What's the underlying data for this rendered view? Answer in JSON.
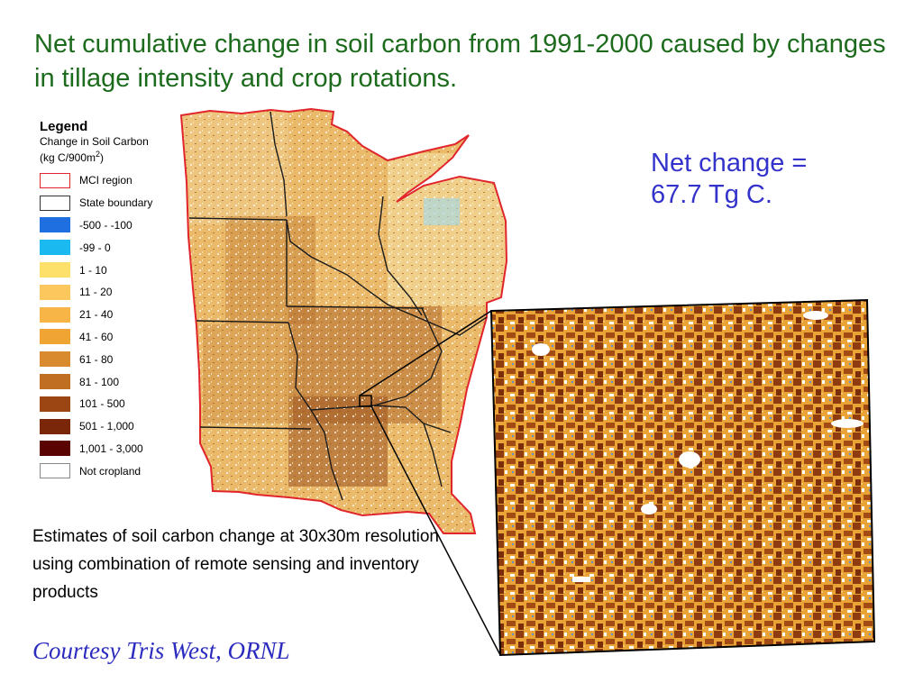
{
  "title": "Net cumulative change in soil carbon from 1991-2000 caused by changes in tillage intensity and crop rotations.",
  "legend": {
    "title": "Legend",
    "subtitle": "Change in Soil Carbon",
    "units_prefix": "(kg C/900m",
    "units_sup": "2",
    "units_suffix": ")",
    "items": [
      {
        "label": "MCI region",
        "fill": "#ffffff",
        "stroke": "#e0252b"
      },
      {
        "label": "State boundary",
        "fill": "#ffffff",
        "stroke": "#333333"
      },
      {
        "label": "-500 - -100",
        "fill": "#1f6fe0",
        "stroke": "#1f6fe0"
      },
      {
        "label": "-99 - 0",
        "fill": "#1ab9ef",
        "stroke": "#1ab9ef"
      },
      {
        "label": "1 - 10",
        "fill": "#fde06a",
        "stroke": "#fde06a"
      },
      {
        "label": "11 - 20",
        "fill": "#fcc75c",
        "stroke": "#fcc75c"
      },
      {
        "label": "21 - 40",
        "fill": "#f7b547",
        "stroke": "#f7b547"
      },
      {
        "label": "41 - 60",
        "fill": "#f0a434",
        "stroke": "#f0a434"
      },
      {
        "label": "61 - 80",
        "fill": "#d98a2e",
        "stroke": "#d98a2e"
      },
      {
        "label": "81 - 100",
        "fill": "#c06f22",
        "stroke": "#c06f22"
      },
      {
        "label": "101 - 500",
        "fill": "#9c4614",
        "stroke": "#9c4614"
      },
      {
        "label": "501 - 1,000",
        "fill": "#7a2608",
        "stroke": "#7a2608"
      },
      {
        "label": "1,001 - 3,000",
        "fill": "#5a0303",
        "stroke": "#5a0303"
      },
      {
        "label": "Not cropland",
        "fill": "#ffffff",
        "stroke": "#888888"
      }
    ]
  },
  "net_change": {
    "line1": "Net change =",
    "line2": "67.7 Tg C."
  },
  "caption": "Estimates of soil carbon change at 30x30m resolution using combination of remote sensing and inventory products",
  "credit": "Courtesy Tris West, ORNL",
  "colors": {
    "title": "#1d6b1d",
    "net_change": "#3333cc",
    "credit": "#2b2bbf",
    "region_outline": "#e0252b",
    "map_base": "#e9b457",
    "inset_base": "#e9a336"
  }
}
